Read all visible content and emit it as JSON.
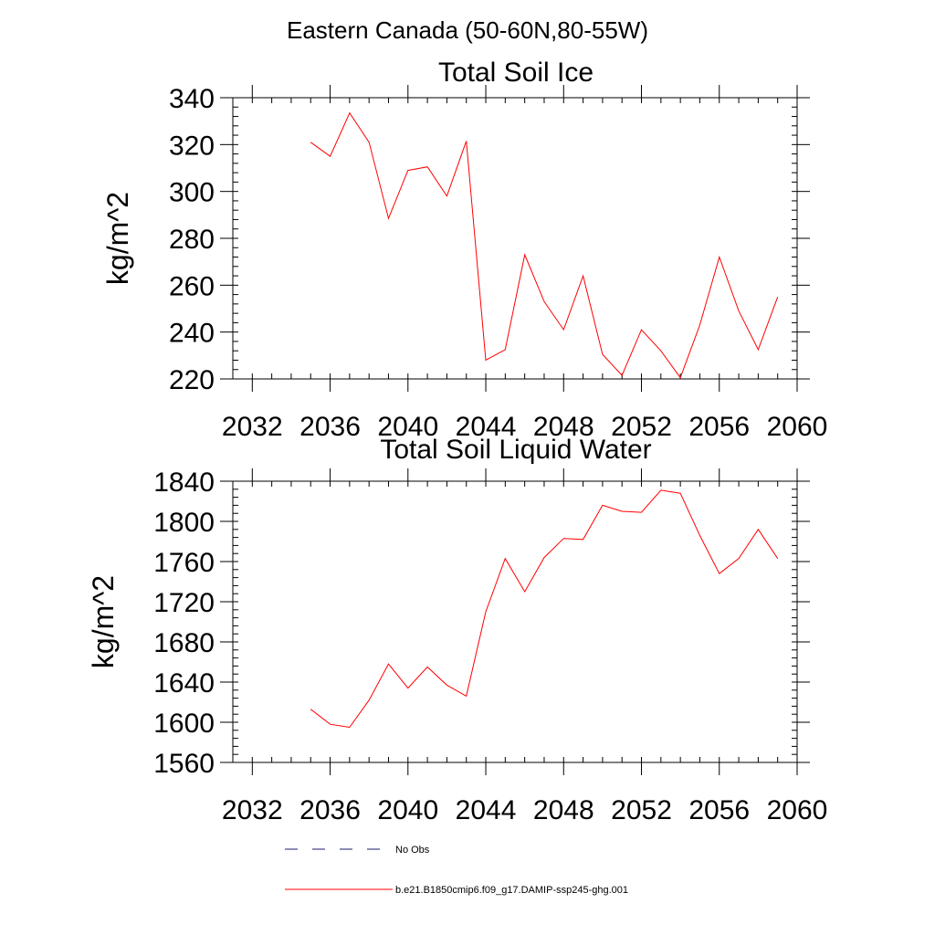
{
  "figure": {
    "title": "Eastern Canada (50-60N,80-55W)"
  },
  "legend": {
    "placement": "bottom",
    "entries": [
      {
        "label": "No Obs",
        "color": "#1a1a6e",
        "style": "dashed"
      },
      {
        "label": "b.e21.B1850cmip6.f09_g17.DAMIP-ssp245-ghg.001",
        "color": "#ff0000",
        "style": "solid"
      }
    ]
  },
  "colors": {
    "series": "#ff0000",
    "axis": "#000000",
    "obs": "#1a1a6e"
  },
  "chart_data": [
    {
      "type": "line",
      "title": "Total Soil Ice",
      "ylabel": "kg/m^2",
      "xlabel": "",
      "xlim": [
        2031,
        2060
      ],
      "ylim": [
        220,
        340
      ],
      "xticks": [
        2032,
        2036,
        2040,
        2044,
        2048,
        2052,
        2056,
        2060
      ],
      "yticks": [
        220,
        240,
        260,
        280,
        300,
        320,
        340
      ],
      "grid": false,
      "x": [
        2035,
        2036,
        2037,
        2038,
        2039,
        2040,
        2041,
        2042,
        2043,
        2044,
        2045,
        2046,
        2047,
        2048,
        2049,
        2050,
        2051,
        2052,
        2053,
        2054,
        2055,
        2056,
        2057,
        2058,
        2059
      ],
      "series": [
        {
          "name": "b.e21.B1850cmip6.f09_g17.DAMIP-ssp245-ghg.001",
          "values": [
            321,
            315,
            333.5,
            321,
            288.5,
            309,
            310.5,
            298,
            321.5,
            228,
            232.5,
            273,
            253,
            241,
            264,
            230.5,
            221.5,
            241,
            232,
            220.5,
            243,
            272,
            249,
            232.5,
            255
          ]
        }
      ]
    },
    {
      "type": "line",
      "title": "Total Soil Liquid Water",
      "ylabel": "kg/m^2",
      "xlabel": "",
      "xlim": [
        2031,
        2060
      ],
      "ylim": [
        1560,
        1840
      ],
      "xticks": [
        2032,
        2036,
        2040,
        2044,
        2048,
        2052,
        2056,
        2060
      ],
      "yticks": [
        1560,
        1600,
        1640,
        1680,
        1720,
        1760,
        1800,
        1840
      ],
      "grid": false,
      "x": [
        2035,
        2036,
        2037,
        2038,
        2039,
        2040,
        2041,
        2042,
        2043,
        2044,
        2045,
        2046,
        2047,
        2048,
        2049,
        2050,
        2051,
        2052,
        2053,
        2054,
        2055,
        2056,
        2057,
        2058,
        2059
      ],
      "series": [
        {
          "name": "b.e21.B1850cmip6.f09_g17.DAMIP-ssp245-ghg.001",
          "values": [
            1613,
            1598,
            1595,
            1622,
            1658,
            1634,
            1655,
            1637,
            1626,
            1710,
            1763,
            1730,
            1764,
            1783,
            1782,
            1816,
            1810,
            1809,
            1831,
            1828,
            1786,
            1748,
            1763,
            1792,
            1763
          ]
        }
      ]
    }
  ]
}
